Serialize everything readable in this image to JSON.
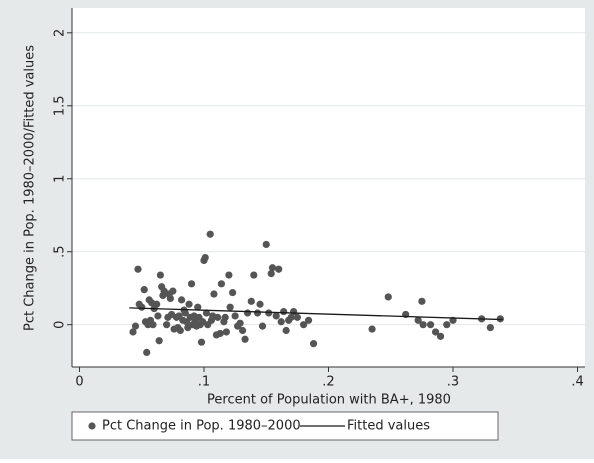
{
  "chart_data": {
    "type": "scatter",
    "xlabel": "Percent of Population with BA+, 1980",
    "ylabel": "Pct Change in Pop. 1980–2000/Fitted values",
    "xlim": [
      -0.006,
      0.406
    ],
    "ylim": [
      -0.29,
      2.17
    ],
    "xticks": [
      0,
      {
        "value": 0.1,
        "label": ".1"
      },
      {
        "value": 0.2,
        "label": ".2"
      },
      {
        "value": 0.3,
        "label": ".3"
      },
      {
        "value": 0.4,
        "label": ".4"
      }
    ],
    "yticks": [
      0,
      {
        "value": 0.5,
        "label": ".5"
      },
      1,
      1.5,
      2
    ],
    "grid": true,
    "legend": "bottom",
    "series": [
      {
        "name": "Pct Change in Pop. 1980–2000",
        "type": "scatter",
        "color": "#555555",
        "x": [
          0.043,
          0.045,
          0.047,
          0.048,
          0.05,
          0.052,
          0.053,
          0.054,
          0.055,
          0.056,
          0.057,
          0.058,
          0.059,
          0.06,
          0.062,
          0.063,
          0.064,
          0.065,
          0.066,
          0.067,
          0.068,
          0.07,
          0.071,
          0.072,
          0.073,
          0.074,
          0.075,
          0.076,
          0.078,
          0.079,
          0.08,
          0.081,
          0.082,
          0.083,
          0.084,
          0.085,
          0.086,
          0.087,
          0.088,
          0.089,
          0.09,
          0.091,
          0.092,
          0.093,
          0.094,
          0.095,
          0.096,
          0.097,
          0.098,
          0.099,
          0.1,
          0.101,
          0.102,
          0.103,
          0.105,
          0.106,
          0.107,
          0.108,
          0.11,
          0.111,
          0.113,
          0.114,
          0.116,
          0.117,
          0.118,
          0.12,
          0.121,
          0.123,
          0.125,
          0.127,
          0.129,
          0.131,
          0.133,
          0.135,
          0.138,
          0.14,
          0.143,
          0.145,
          0.147,
          0.15,
          0.152,
          0.154,
          0.155,
          0.158,
          0.16,
          0.162,
          0.164,
          0.166,
          0.168,
          0.17,
          0.172,
          0.175,
          0.18,
          0.184,
          0.188,
          0.235,
          0.248,
          0.262,
          0.272,
          0.275,
          0.276,
          0.282,
          0.286,
          0.29,
          0.295,
          0.3,
          0.323,
          0.33,
          0.338
        ],
        "values": [
          -0.05,
          -0.01,
          0.38,
          0.14,
          0.12,
          0.24,
          0.02,
          -0.19,
          0.0,
          0.17,
          0.03,
          0.15,
          0.0,
          0.11,
          0.14,
          0.06,
          -0.11,
          0.34,
          0.26,
          0.2,
          0.23,
          0.0,
          0.05,
          0.21,
          0.18,
          0.07,
          0.23,
          -0.03,
          0.05,
          -0.02,
          0.06,
          -0.04,
          0.17,
          0.03,
          0.1,
          0.08,
          0.02,
          -0.02,
          0.14,
          0.05,
          0.28,
          0.0,
          0.06,
          0.02,
          -0.01,
          0.12,
          0.05,
          0.0,
          -0.12,
          0.02,
          0.44,
          0.46,
          0.08,
          0.0,
          0.62,
          0.03,
          0.06,
          0.21,
          -0.07,
          0.05,
          -0.06,
          0.28,
          0.02,
          0.05,
          -0.05,
          0.34,
          0.12,
          0.22,
          0.06,
          -0.01,
          0.01,
          -0.04,
          -0.1,
          0.08,
          0.16,
          0.34,
          0.08,
          0.14,
          -0.01,
          0.55,
          0.08,
          0.35,
          0.39,
          0.06,
          0.38,
          0.02,
          0.09,
          -0.04,
          0.03,
          0.05,
          0.09,
          0.05,
          0.0,
          0.03,
          -0.13,
          -0.03,
          0.19,
          0.07,
          0.03,
          0.16,
          0.0,
          0.0,
          -0.05,
          -0.08,
          0.0,
          0.03,
          0.04,
          -0.02,
          0.04
        ]
      },
      {
        "name": "Fitted values",
        "type": "line",
        "color": "#1a1a1a",
        "x": [
          0.04,
          0.34
        ],
        "values": [
          0.115,
          0.035
        ]
      }
    ]
  }
}
